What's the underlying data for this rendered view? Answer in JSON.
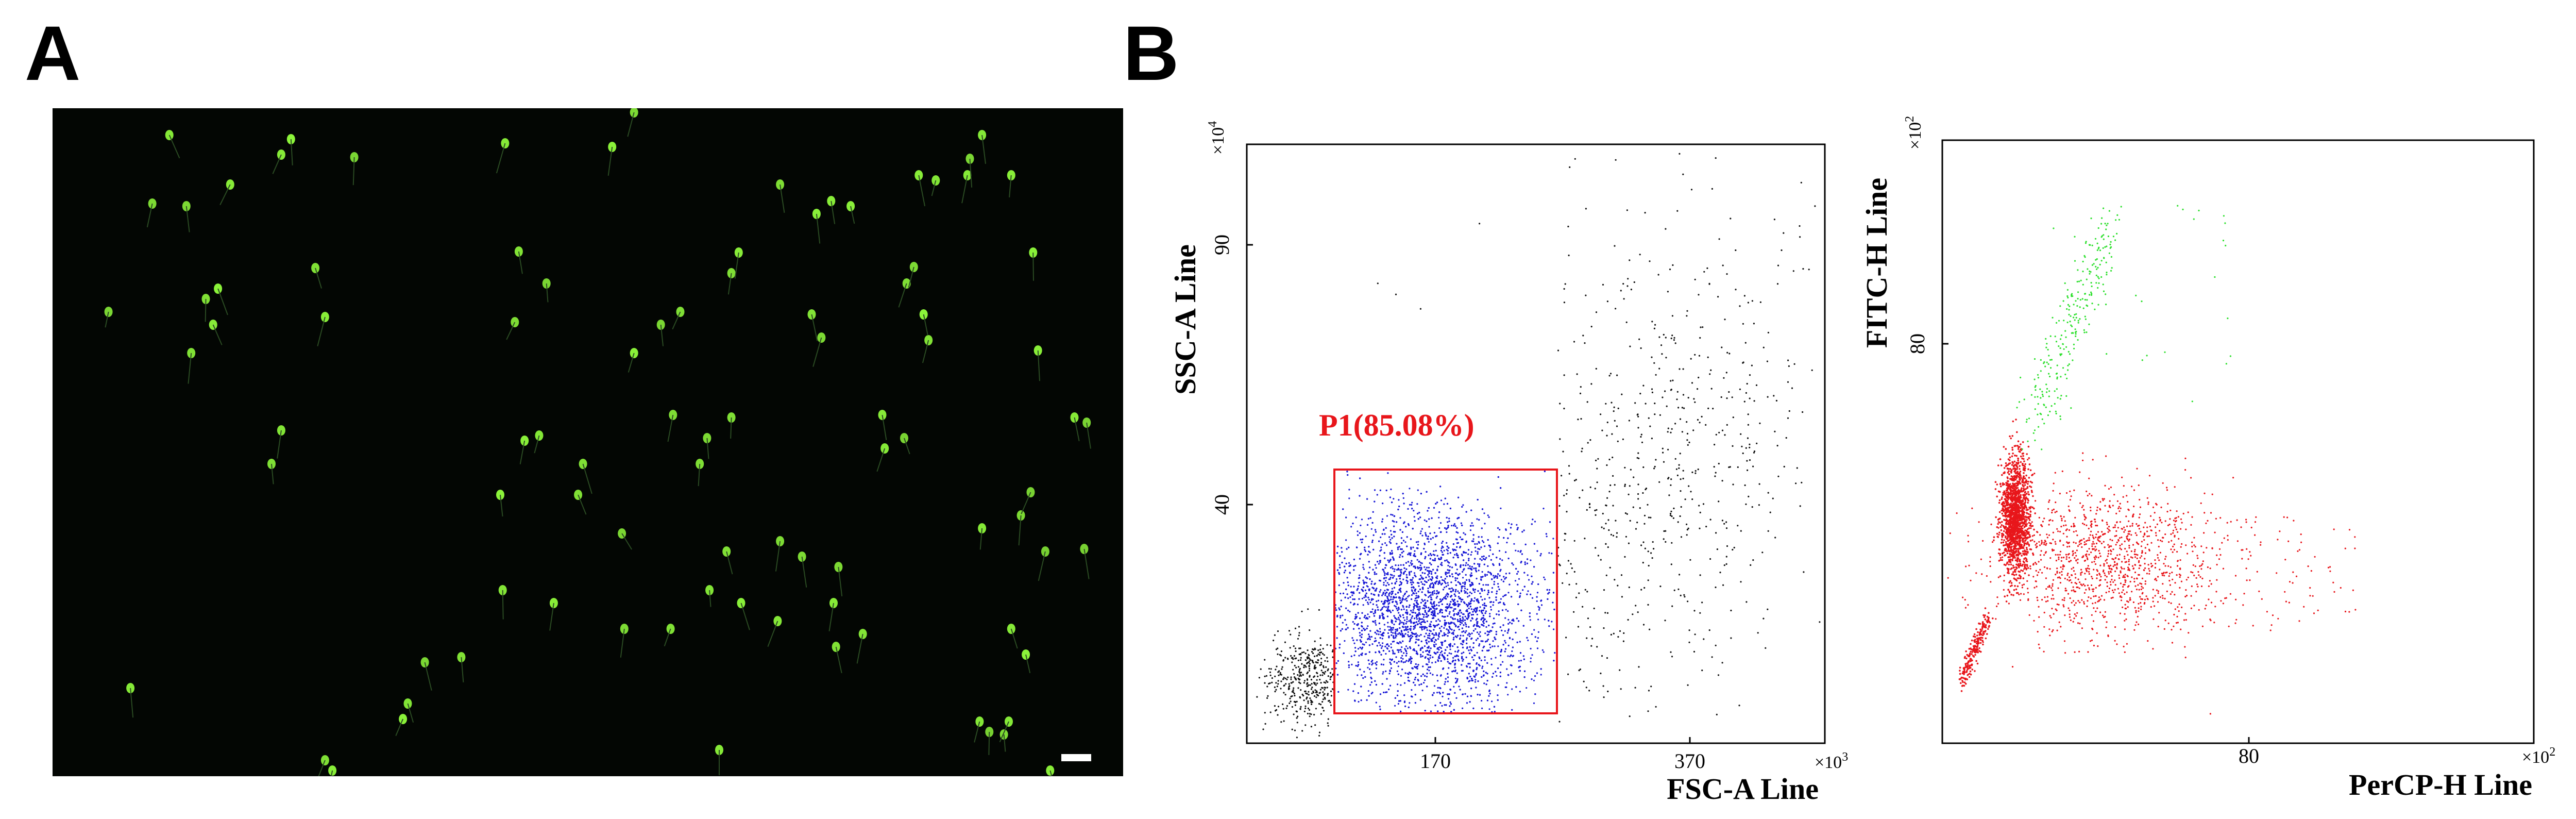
{
  "panels": {
    "a_label": "A",
    "b_label": "B"
  },
  "micrograph": {
    "background": "#030603",
    "cell_color": "#8cf53a",
    "scale_bar_color": "#ffffff"
  },
  "plot1": {
    "y_title": "SSC-A  Line",
    "x_title": "FSC-A  Line",
    "y_multiplier_base": "×10",
    "y_multiplier_exp": "4",
    "x_multiplier_base": "×10",
    "x_multiplier_exp": "3",
    "y_ticks": [
      "90",
      "40"
    ],
    "x_ticks": [
      "170",
      "370"
    ],
    "gate_label": "P1(85.08%)",
    "gate_color": "#e8161b",
    "gated_color": "#1b1bd6",
    "ungated_color": "#111111"
  },
  "plot2": {
    "y_title": "FITC-H  Line",
    "x_title": "PerCP-H  Line",
    "y_multiplier_base": "×10",
    "y_multiplier_exp": "2",
    "x_multiplier_base": "×10",
    "x_multiplier_exp": "2",
    "y_ticks": [
      "80"
    ],
    "x_ticks": [
      "80"
    ],
    "positive_color": "#2ee02e",
    "negative_color": "#e8161b"
  }
}
